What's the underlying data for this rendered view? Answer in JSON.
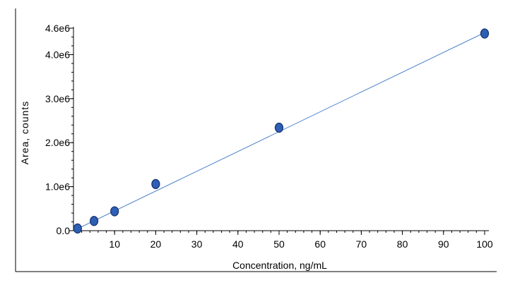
{
  "chart_data": {
    "type": "scatter",
    "xlabel": "Concentration, ng/mL",
    "ylabel": "Area, counts",
    "xlim": [
      0,
      100
    ],
    "ylim": [
      0,
      4600000
    ],
    "x_ticks": [
      {
        "value": 10,
        "label": "10"
      },
      {
        "value": 20,
        "label": "20"
      },
      {
        "value": 30,
        "label": "30"
      },
      {
        "value": 40,
        "label": "40"
      },
      {
        "value": 50,
        "label": "50"
      },
      {
        "value": 60,
        "label": "60"
      },
      {
        "value": 70,
        "label": "70"
      },
      {
        "value": 80,
        "label": "80"
      },
      {
        "value": 90,
        "label": "90"
      },
      {
        "value": 100,
        "label": "100"
      }
    ],
    "y_ticks": [
      {
        "value": 0,
        "label": "0.0"
      },
      {
        "value": 1000000,
        "label": "1.0e6"
      },
      {
        "value": 2000000,
        "label": "2.0e6"
      },
      {
        "value": 3000000,
        "label": "3.0e6"
      },
      {
        "value": 4000000,
        "label": "4.0e6"
      },
      {
        "value": 4600000,
        "label": "4.6e6"
      }
    ],
    "series": [
      {
        "points": [
          {
            "x": 1,
            "y": 50000
          },
          {
            "x": 5,
            "y": 220000
          },
          {
            "x": 10,
            "y": 440000
          },
          {
            "x": 20,
            "y": 1060000
          },
          {
            "x": 50,
            "y": 2340000
          },
          {
            "x": 100,
            "y": 4480000
          }
        ],
        "marker_color": "#2e5fb5",
        "marker_edge_color": "#13306e"
      }
    ],
    "fit_line": {
      "x": [
        0,
        100
      ],
      "y": [
        0,
        4500000
      ],
      "color": "#4a7fc9"
    },
    "axis_color": "#000000",
    "grid": false,
    "legend": "none"
  }
}
